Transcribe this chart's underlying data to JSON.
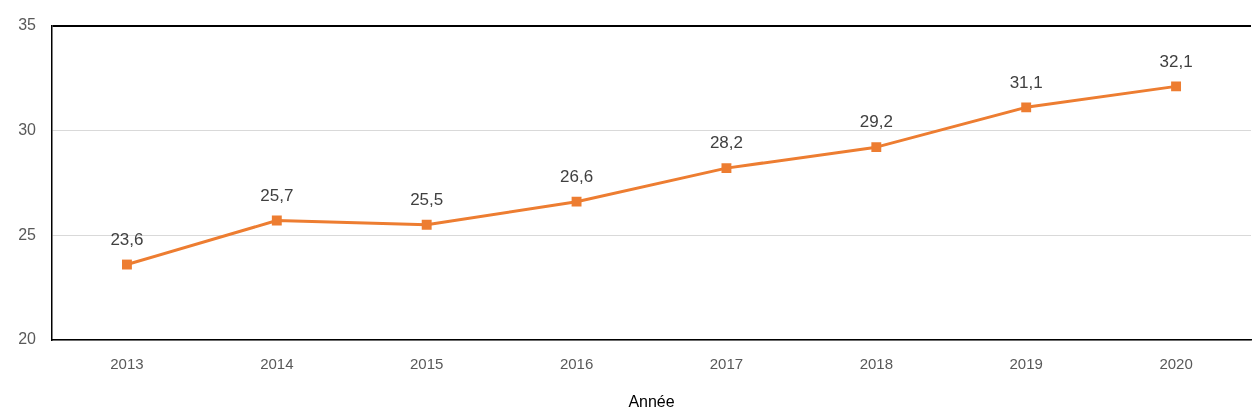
{
  "chart_data": {
    "type": "line",
    "xlabel": "Année",
    "categories": [
      "2013",
      "2014",
      "2015",
      "2016",
      "2017",
      "2018",
      "2019",
      "2020"
    ],
    "series": [
      {
        "color": "#ed7d31",
        "values": [
          23.6,
          25.7,
          25.5,
          26.6,
          28.2,
          29.2,
          31.1,
          32.1
        ],
        "value_labels": [
          "23,6",
          "25,7",
          "25,5",
          "26,6",
          "28,2",
          "29,2",
          "31,1",
          "32,1"
        ]
      }
    ],
    "ylim": [
      20,
      35
    ],
    "yticks": [
      20,
      25,
      30,
      35
    ],
    "grid": "y",
    "marker": "square",
    "line_style": "solid"
  }
}
